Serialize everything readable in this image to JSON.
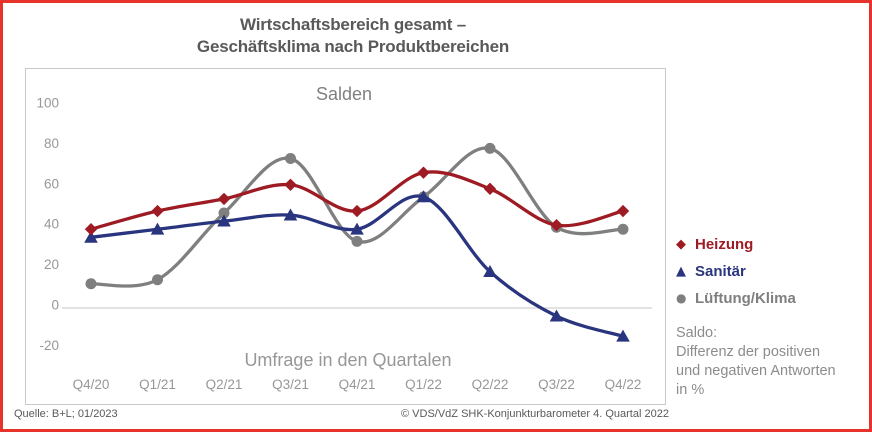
{
  "frame": {
    "border_color": "#e6332b"
  },
  "title": {
    "line1": "Wirtschaftsbereich gesamt –",
    "line2": "Geschäftsklima nach Produktbereichen"
  },
  "chart_data": {
    "type": "line",
    "inner_title": "Salden",
    "xlabel": "Umfrage in den Quartalen",
    "categories": [
      "Q4/20",
      "Q1/21",
      "Q2/21",
      "Q3/21",
      "Q4/21",
      "Q1/22",
      "Q2/22",
      "Q3/22",
      "Q4/22"
    ],
    "yticks": [
      100,
      80,
      60,
      40,
      20,
      0,
      -20
    ],
    "ylim": [
      -40,
      115
    ],
    "grid": "zero-line-only",
    "legend_position": "right",
    "series": [
      {
        "name": "Lüftung/Klima",
        "slug": "lueftung-klima",
        "marker": "circle",
        "color": "#7f7f7f",
        "values": [
          12,
          14,
          47,
          74,
          33,
          55,
          79,
          40,
          39
        ]
      },
      {
        "name": "Sanitär",
        "slug": "sanitaer",
        "marker": "triangle",
        "color": "#2a357f",
        "values": [
          35,
          39,
          43,
          46,
          39,
          55,
          18,
          -4,
          -14
        ]
      },
      {
        "name": "Heizung",
        "slug": "heizung",
        "marker": "diamond",
        "color": "#9f1b24",
        "values": [
          39,
          48,
          54,
          61,
          48,
          67,
          59,
          41,
          48
        ]
      }
    ],
    "legend_order": [
      2,
      1,
      0
    ],
    "axis_label_color": "#979797",
    "gridline_color": "#d9d9d9",
    "inner_title_color": "#808080"
  },
  "note": {
    "lines": [
      "Saldo:",
      "Differenz der positiven",
      "und negativen Antworten",
      "in %"
    ]
  },
  "footer": {
    "source": "Quelle: B+L; 01/2023",
    "copyright": "© VDS/VdZ SHK-Konjunkturbarometer 4. Quartal 2022"
  }
}
